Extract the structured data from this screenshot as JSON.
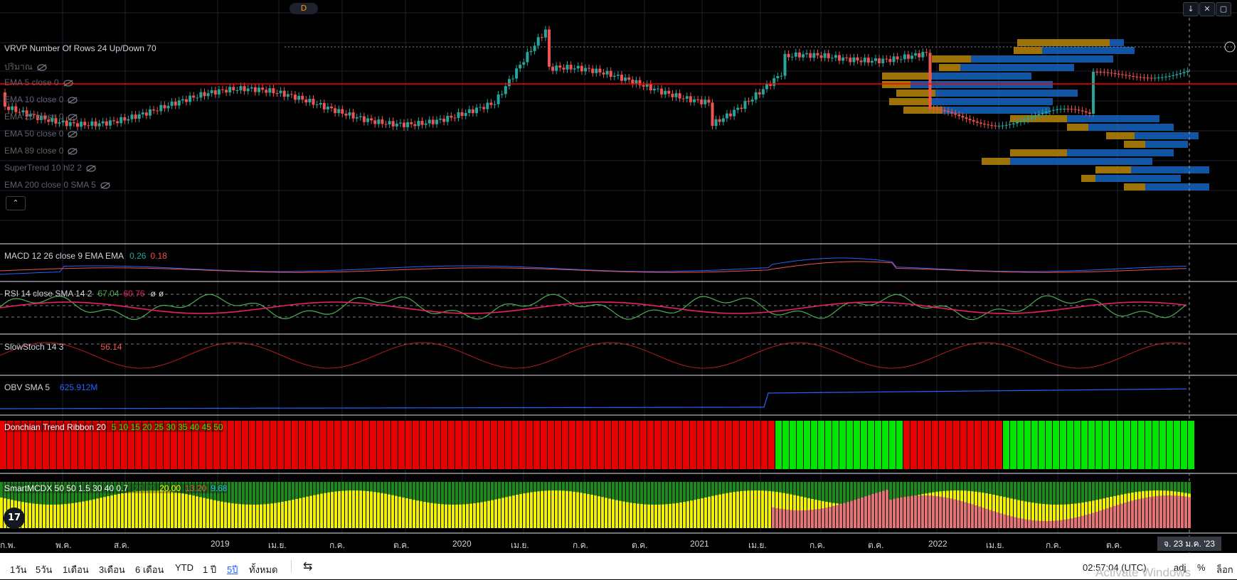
{
  "interval_badge": "D",
  "top_buttons": [
    "↓",
    "✕",
    "▢"
  ],
  "main_legend": {
    "vrvp": "VRVP Number Of Rows 24 Up/Down 70",
    "volume": "ปริมาณ",
    "ema5": "EMA 5 close 0",
    "ema10": "EMA 10 close 0",
    "ema20": "EMA 20 close 0",
    "ema50": "EMA 50 close 0",
    "ema89": "EMA 89 close 0",
    "supertrend": "SuperTrend 10 hl2 2",
    "ema200": "EMA 200 close 0 SMA 5",
    "collapse": "⌃"
  },
  "panes": {
    "macd": {
      "label": "MACD 12 26 close 9 EMA EMA",
      "v1": "0.26",
      "v2": "0.18"
    },
    "rsi": {
      "label": "RSI 14 close SMA 14 2",
      "v1": "67.04",
      "v2": "60.76",
      "v3": "ø",
      "v4": "ø"
    },
    "stoch": {
      "label": "SlowStoch 14 3",
      "v1": "56.14"
    },
    "obv": {
      "label": "OBV SMA 5",
      "v1": "625.912M"
    },
    "donchian": {
      "label": "Donchian Trend Ribbon 20",
      "v1": "5 10 15 20 25 30 35 40 45 50"
    },
    "smartmcdx": {
      "label": "SmartMCDX 50 50 1.5 30 40 0.7",
      "v1": "20.00",
      "v2": "20.00",
      "v3": "13.20",
      "v4": "9.68"
    }
  },
  "x_axis": [
    "ก.พ.",
    "พ.ค.",
    "ส.ค.",
    "2019",
    "เม.ย.",
    "ก.ค.",
    "ต.ค.",
    "2020",
    "เม.ย.",
    "ก.ค.",
    "ต.ค.",
    "2021",
    "เม.ย.",
    "ก.ค.",
    "ต.ค.",
    "2022",
    "เม.ย.",
    "ก.ค.",
    "ต.ค."
  ],
  "date_tag": "จ. 23 ม.ค. '23",
  "logo": "17",
  "bottom_bar": {
    "timeframes": [
      "1วัน",
      "5วัน",
      "1เดือน",
      "3เดือน",
      "6 เดือน",
      "YTD",
      "1 ปี",
      "5ปี",
      "ทั้งหมด"
    ],
    "active": "5ปี",
    "compare_icon": "⇆",
    "clock": "02:57:04 (UTC)",
    "adj": "adj",
    "percent": "%",
    "log": "ล็อก"
  },
  "watermark": "Activate Windows",
  "colors": {
    "up": "#26a69a",
    "down": "#ef5350",
    "red_line": "#ff0000",
    "rsi": "#4caf50",
    "rsi_ma": "#e91e63",
    "obv": "#2962ff",
    "vp_up": "#b8860b",
    "vp_dn": "#1565c0"
  }
}
